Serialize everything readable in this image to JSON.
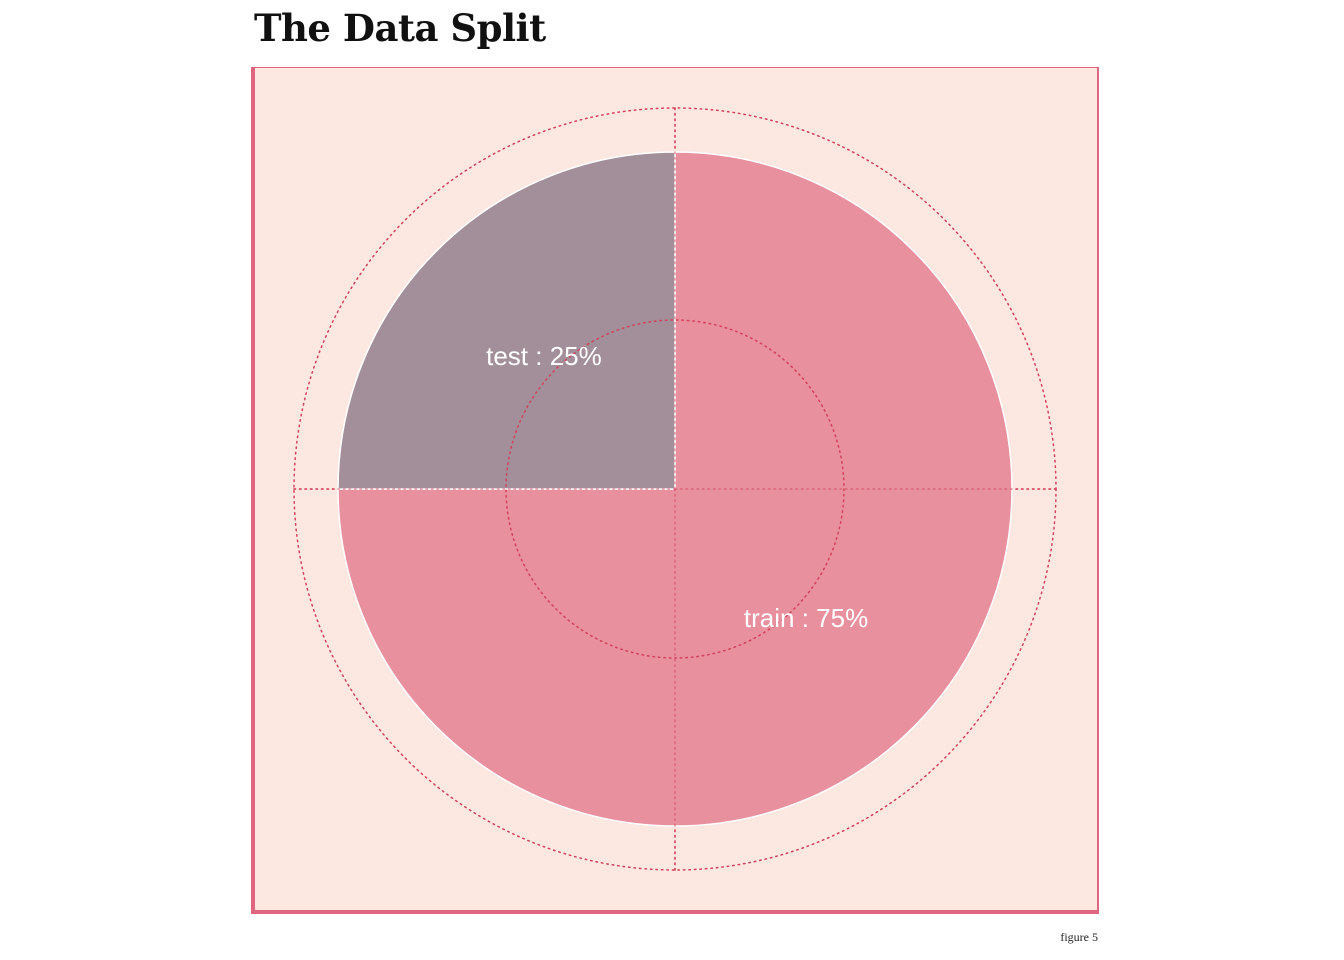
{
  "page": {
    "title": "The Data Split",
    "caption": "figure 5"
  },
  "colors": {
    "panel_background": "#fde7e1",
    "frame_border": "#e0657f",
    "grid_dotted": "#d2405a",
    "slice_border": "#ffffff",
    "label_text": "#ffffff"
  },
  "chart_data": {
    "type": "pie",
    "title": "The Data Split",
    "start_angle_deg": 0,
    "direction": "clockwise",
    "polar_grid": "dotted",
    "slices": [
      {
        "name": "train",
        "value": 75,
        "label": "train :  75%",
        "color": "#e8909e"
      },
      {
        "name": "test",
        "value": 25,
        "label": "test :  25%",
        "color": "#a38f99"
      }
    ]
  }
}
